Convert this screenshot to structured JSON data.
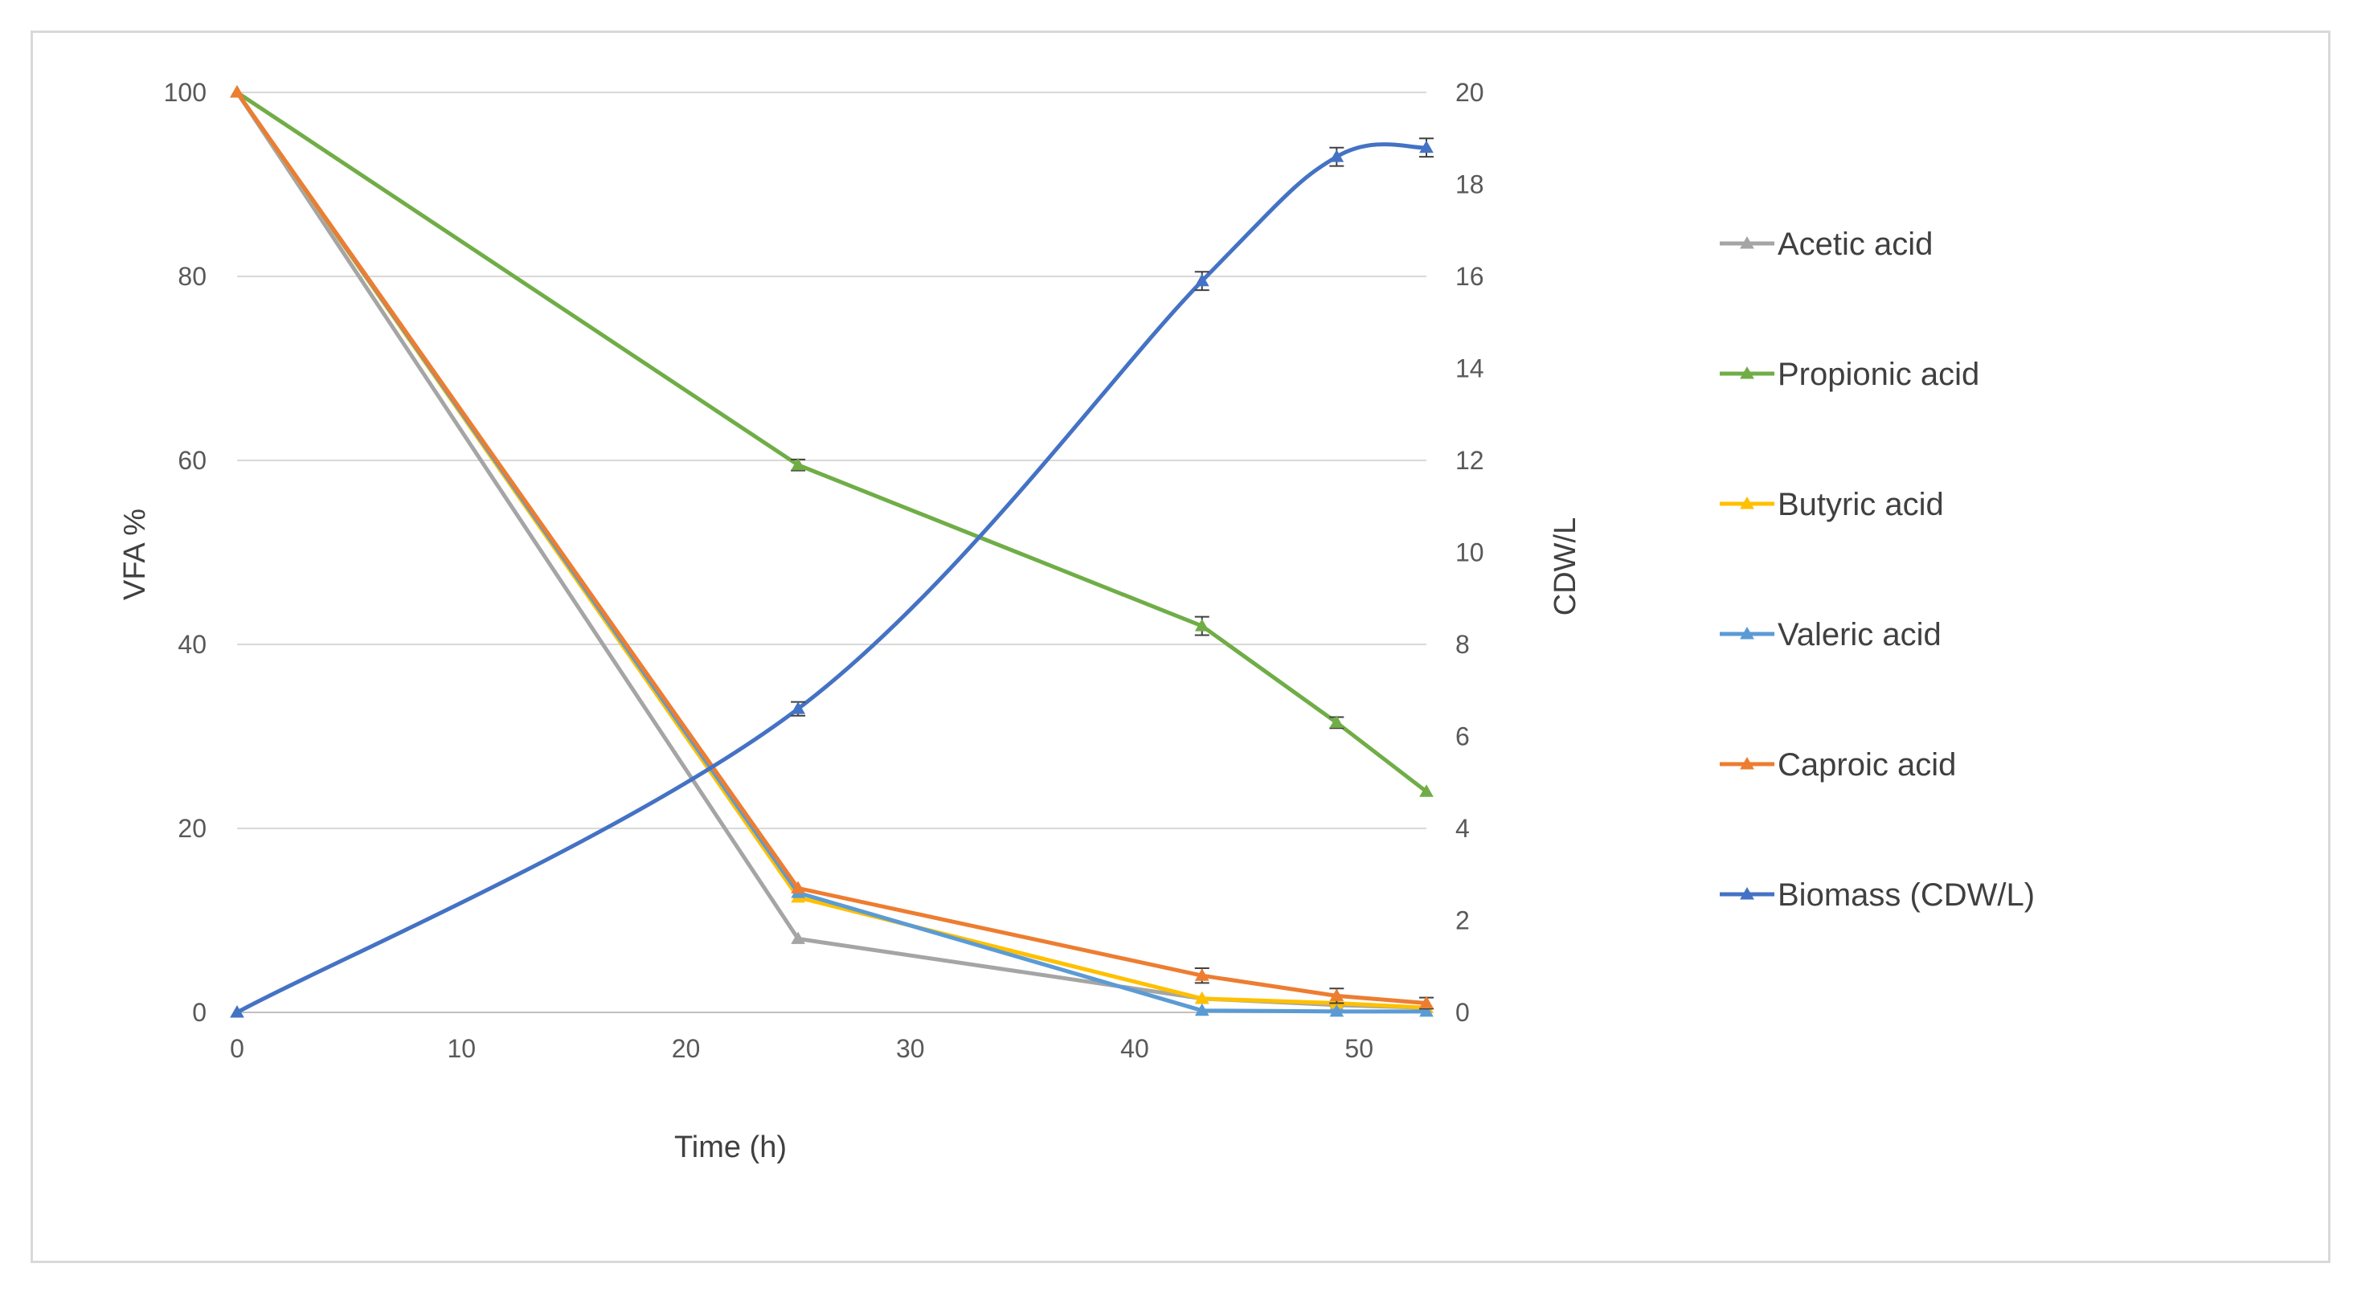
{
  "chart_data": {
    "type": "line",
    "title": "",
    "xlabel": "Time (h)",
    "ylabel": "VFA  %",
    "y2label": "CDW/L",
    "xlim": [
      0,
      53
    ],
    "ylim": [
      0,
      100
    ],
    "y2lim": [
      0,
      20
    ],
    "xticks": [
      0,
      10,
      20,
      30,
      40,
      50
    ],
    "yticks": [
      0,
      20,
      40,
      60,
      80,
      100
    ],
    "y2ticks": [
      0,
      2,
      4,
      6,
      8,
      10,
      12,
      14,
      16,
      18,
      20
    ],
    "grid": true,
    "legend_position": "right",
    "series": [
      {
        "name": "Acetic acid",
        "axis": "left",
        "color": "#a5a5a5",
        "smooth": false,
        "x": [
          0,
          25,
          43,
          49,
          53
        ],
        "y": [
          100,
          8,
          1.5,
          0.8,
          0.5
        ],
        "err": [
          0,
          0,
          0,
          0,
          0
        ]
      },
      {
        "name": "Propionic acid",
        "axis": "left",
        "color": "#70ad47",
        "smooth": false,
        "x": [
          0,
          25,
          43,
          49,
          53
        ],
        "y": [
          100,
          59.5,
          42,
          31.5,
          24
        ],
        "err": [
          0,
          0.6,
          1.0,
          0.6,
          0
        ]
      },
      {
        "name": "Butyric acid",
        "axis": "left",
        "color": "#ffc000",
        "smooth": false,
        "x": [
          0,
          25,
          43,
          49,
          53
        ],
        "y": [
          100,
          12.5,
          1.5,
          1,
          0.5
        ],
        "err": [
          0,
          0,
          0,
          0,
          0
        ]
      },
      {
        "name": "Valeric acid",
        "axis": "left",
        "color": "#5b9bd5",
        "smooth": false,
        "x": [
          0,
          25,
          43,
          49,
          53
        ],
        "y": [
          100,
          13,
          0.2,
          0.1,
          0.1
        ],
        "err": [
          0,
          0,
          0,
          0,
          0
        ]
      },
      {
        "name": "Caproic acid",
        "axis": "left",
        "color": "#ed7d31",
        "smooth": false,
        "x": [
          0,
          25,
          43,
          49,
          53
        ],
        "y": [
          100,
          13.5,
          4,
          1.8,
          1
        ],
        "err": [
          0,
          0,
          0.8,
          0.8,
          0.6
        ]
      },
      {
        "name": "Biomass (CDW/L)",
        "axis": "right",
        "color": "#4472c4",
        "smooth": true,
        "x": [
          0,
          25,
          43,
          49,
          53
        ],
        "y": [
          0,
          6.6,
          15.9,
          18.6,
          18.8
        ],
        "err": [
          0,
          0.15,
          0.2,
          0.2,
          0.2
        ]
      }
    ]
  }
}
